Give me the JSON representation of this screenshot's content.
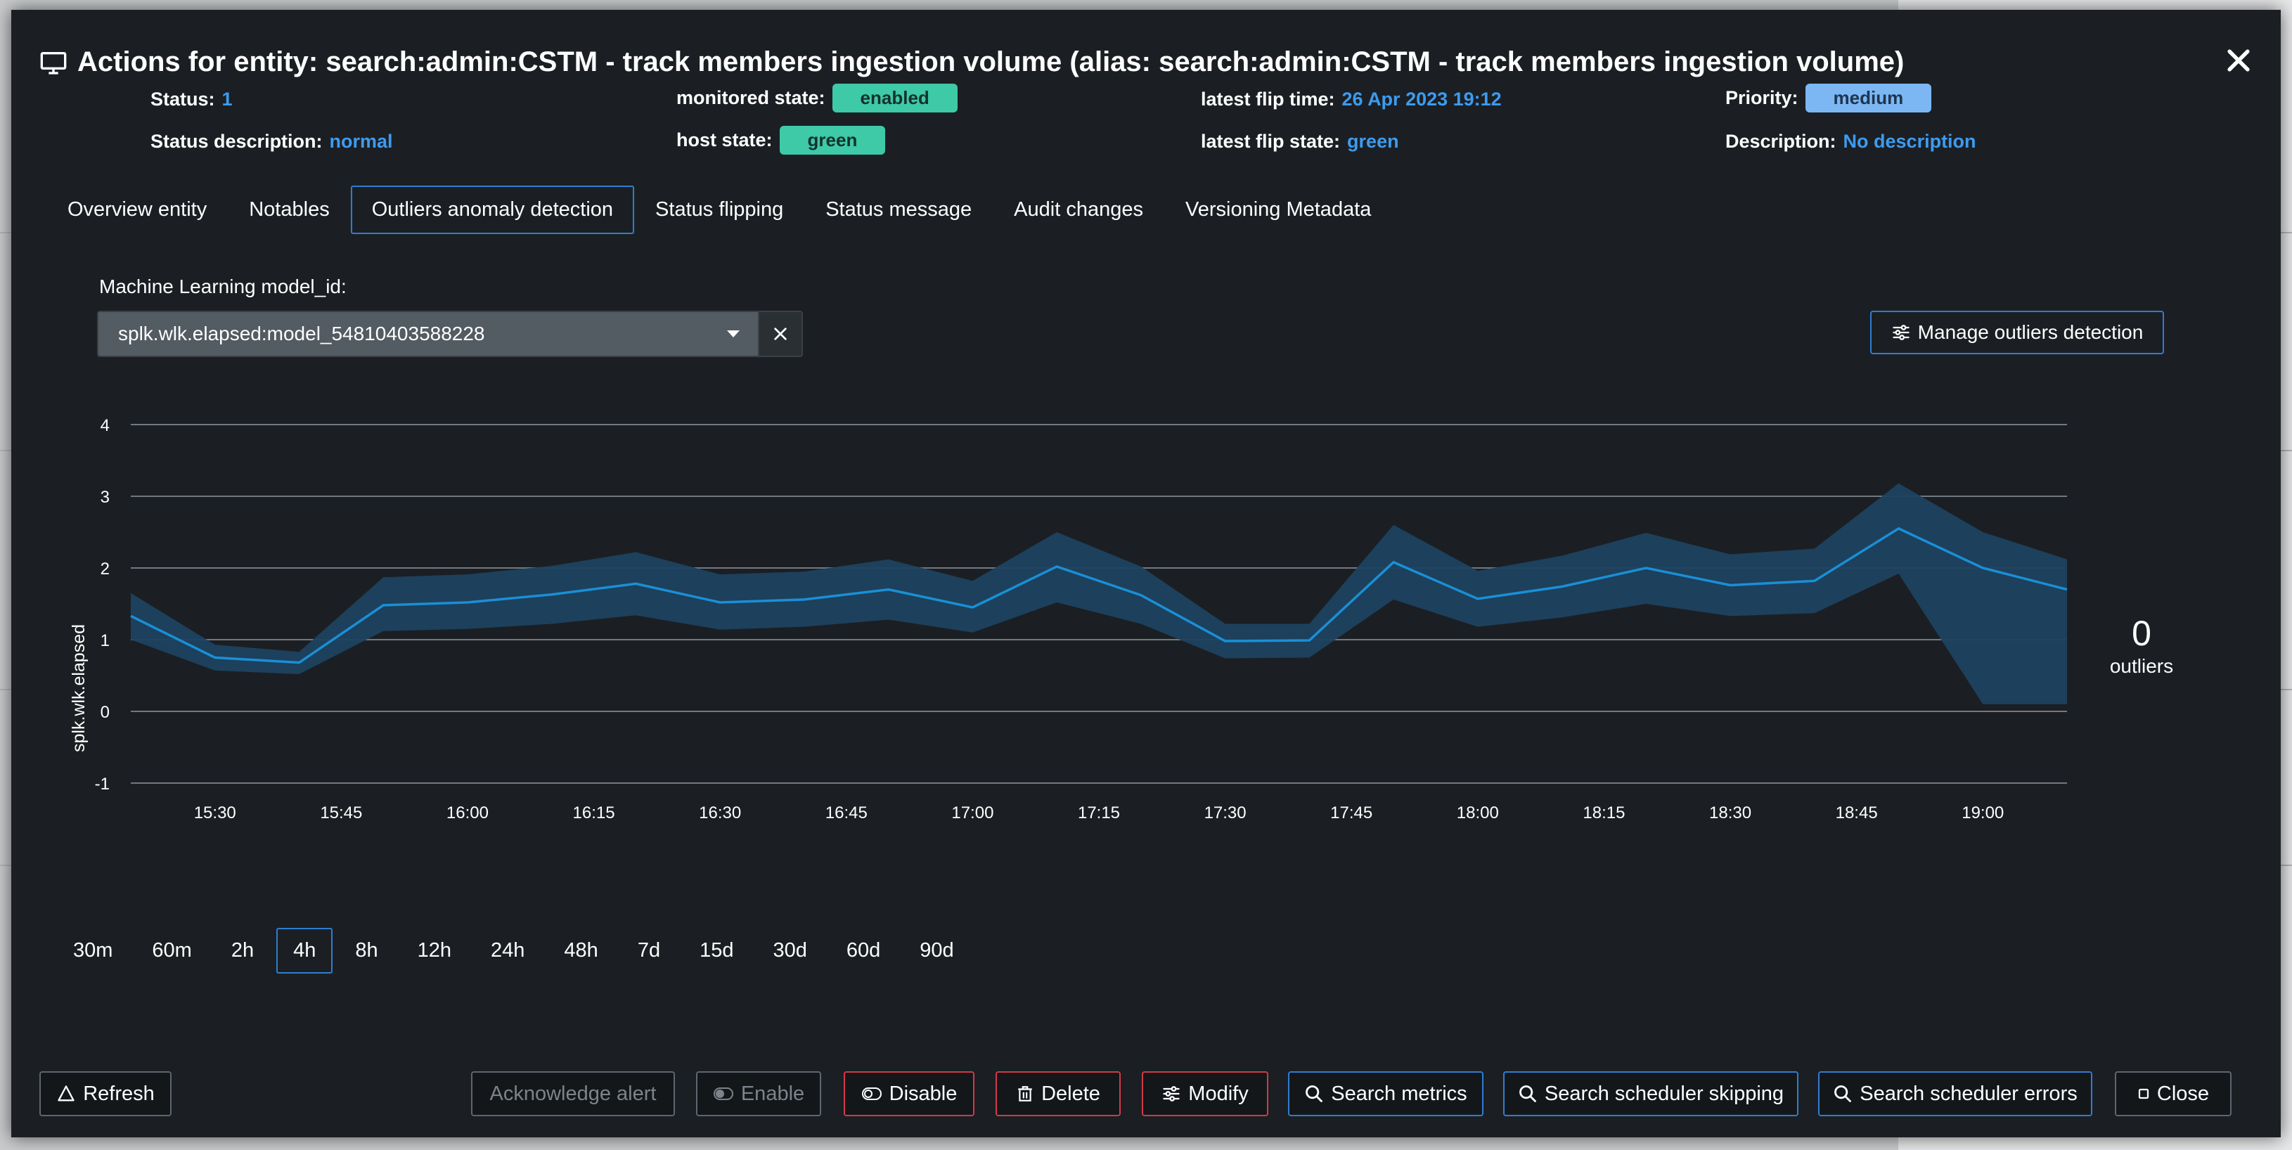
{
  "modal": {
    "title": "Actions for entity: search:admin:CSTM - track members ingestion volume (alias: search:admin:CSTM - track members ingestion volume)"
  },
  "meta": {
    "status_label": "Status:",
    "status_value": "1",
    "status_desc_label": "Status description:",
    "status_desc_value": "normal",
    "monitored_label": "monitored state:",
    "monitored_value": "enabled",
    "host_label": "host state:",
    "host_value": "green",
    "flip_time_label": "latest flip time:",
    "flip_time_value": "26 Apr 2023 19:12",
    "flip_state_label": "latest flip state:",
    "flip_state_value": "green",
    "priority_label": "Priority:",
    "priority_value": "medium",
    "description_label": "Description:",
    "description_value": "No description"
  },
  "tabs": [
    {
      "label": "Overview entity"
    },
    {
      "label": "Notables"
    },
    {
      "label": "Outliers anomaly detection"
    },
    {
      "label": "Status flipping"
    },
    {
      "label": "Status message"
    },
    {
      "label": "Audit changes"
    },
    {
      "label": "Versioning Metadata"
    }
  ],
  "active_tab": 2,
  "ml": {
    "label": "Machine Learning model_id:",
    "selected": "splk.wlk.elapsed:model_54810403588228"
  },
  "manage_button": "Manage outliers detection",
  "outliers": {
    "count": "0",
    "label": "outliers"
  },
  "chart_data": {
    "type": "line",
    "ylabel": "splk.wlk.elapsed",
    "ylim": [
      -1,
      4
    ],
    "yticks": [
      "4",
      "3",
      "2",
      "1",
      "0",
      "-1"
    ],
    "xtick_labels": [
      "15:30",
      "15:45",
      "16:00",
      "16:15",
      "16:30",
      "16:45",
      "17:00",
      "17:15",
      "17:30",
      "17:45",
      "18:00",
      "18:15",
      "18:30",
      "18:45",
      "19:00"
    ],
    "x": [
      "15:20",
      "15:30",
      "15:40",
      "15:50",
      "16:00",
      "16:10",
      "16:20",
      "16:30",
      "16:40",
      "16:50",
      "17:00",
      "17:10",
      "17:20",
      "17:30",
      "17:40",
      "17:50",
      "18:00",
      "18:10",
      "18:20",
      "18:30",
      "18:40",
      "18:50",
      "19:00",
      "19:10"
    ],
    "series": [
      {
        "values": [
          1.33,
          0.75,
          0.68,
          1.48,
          1.52,
          1.63,
          1.78,
          1.52,
          1.56,
          1.7,
          1.45,
          2.02,
          1.62,
          0.98,
          0.99,
          2.08,
          1.57,
          1.74,
          2.0,
          1.76,
          1.82,
          2.55,
          2.0,
          1.7
        ]
      }
    ],
    "band_upper": [
      1.65,
      0.93,
      0.83,
      1.87,
      1.91,
      2.03,
      2.22,
      1.91,
      1.95,
      2.12,
      1.82,
      2.5,
      2.02,
      1.22,
      1.22,
      2.6,
      1.96,
      2.17,
      2.49,
      2.19,
      2.27,
      3.18,
      2.5,
      2.12
    ],
    "band_lower": [
      1.0,
      0.57,
      0.52,
      1.12,
      1.15,
      1.22,
      1.34,
      1.14,
      1.18,
      1.28,
      1.1,
      1.52,
      1.22,
      0.74,
      0.75,
      1.56,
      1.18,
      1.31,
      1.5,
      1.33,
      1.37,
      1.92,
      0.1,
      0.1
    ],
    "colors": {
      "line": "#1a8fd6",
      "band": "#1d4260",
      "grid": "#8a9098"
    }
  },
  "time_ranges": [
    "30m",
    "60m",
    "2h",
    "4h",
    "8h",
    "12h",
    "24h",
    "48h",
    "7d",
    "15d",
    "30d",
    "60d",
    "90d"
  ],
  "active_range": 3,
  "buttons": {
    "refresh": "Refresh",
    "acknowledge": "Acknowledge alert",
    "enable": "Enable",
    "disable": "Disable",
    "delete": "Delete",
    "modify": "Modify",
    "search_metrics": "Search metrics",
    "search_skipping": "Search scheduler skipping",
    "search_errors": "Search scheduler errors",
    "close": "Close"
  }
}
